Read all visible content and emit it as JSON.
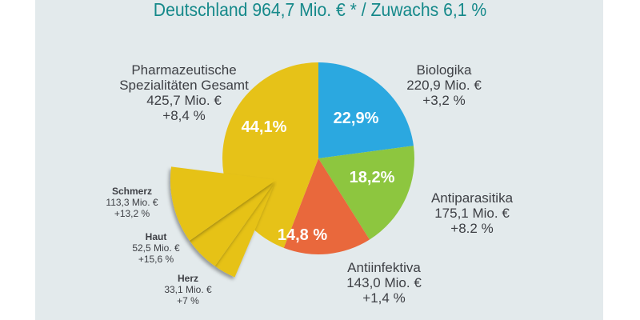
{
  "chart_data": {
    "type": "pie",
    "title": "Deutschland 964,7 Mio. € * / Zuwachs 6,1 %",
    "slices": [
      {
        "name": "Biologika",
        "value": 220.9,
        "percent_label": "22,9%",
        "amount": "220,9 Mio. €",
        "growth": "+3,2 %",
        "color": "#2ba8e0"
      },
      {
        "name": "Antiparasitika",
        "value": 175.1,
        "percent_label": "18,2%",
        "amount": "175,1 Mio. €",
        "growth": "+8.2 %",
        "color": "#8dc63f"
      },
      {
        "name": "Antiinfektiva",
        "value": 143.0,
        "percent_label": "14,8 %",
        "amount": "143,0 Mio. €",
        "growth": "+1,4 %",
        "color": "#e9683c"
      },
      {
        "name": "Pharmazeutische Spezialitäten Gesamt",
        "name_line1": "Pharmazeutische",
        "name_line2": "Spezialitäten Gesamt",
        "value": 425.7,
        "percent_label": "44,1%",
        "amount": "425,7 Mio. €",
        "growth": "+8,4 %",
        "color": "#e6c218"
      }
    ],
    "sub_slices": [
      {
        "name": "Herz",
        "value": 33.1,
        "amount": "33,1 Mio. €",
        "growth": "+7 %"
      },
      {
        "name": "Haut",
        "value": 52.5,
        "amount": "52,5 Mio. €",
        "growth": "+15,6 %"
      },
      {
        "name": "Schmerz",
        "value": 113.3,
        "amount": "113,3 Mio. €",
        "growth": "+13,2 %"
      }
    ],
    "sub_slice_color": "#e6c218"
  }
}
